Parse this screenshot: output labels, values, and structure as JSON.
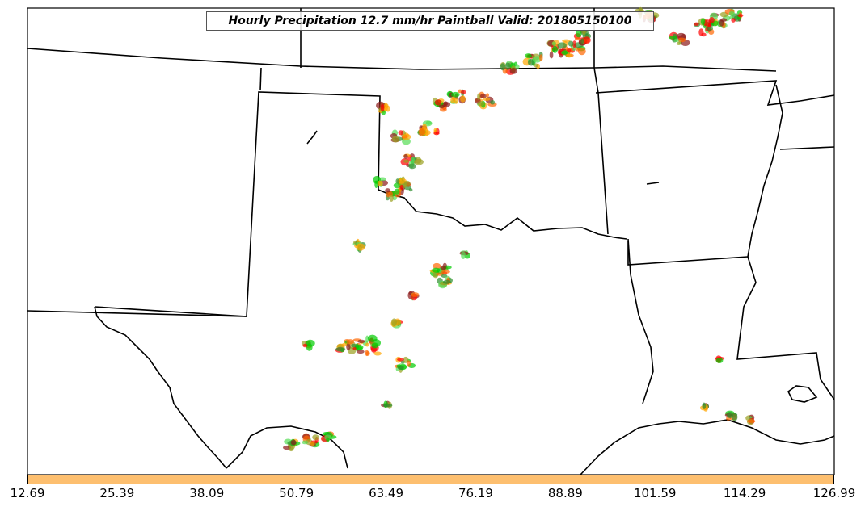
{
  "title": "Hourly Precipitation 12.7 mm/hr Paintball Valid: 201805150100",
  "colorbar": {
    "color": "#fdbf6f",
    "ticks": [
      "12.69",
      "25.39",
      "38.09",
      "50.79",
      "63.49",
      "76.19",
      "88.89",
      "101.59",
      "114.29",
      "126.99"
    ]
  },
  "paintball_colors": [
    "#8b1a1a",
    "#ff0000",
    "#ff6600",
    "#ffa500",
    "#00cc00",
    "#55dd55",
    "#9aa020",
    "#2f8f2f"
  ]
}
